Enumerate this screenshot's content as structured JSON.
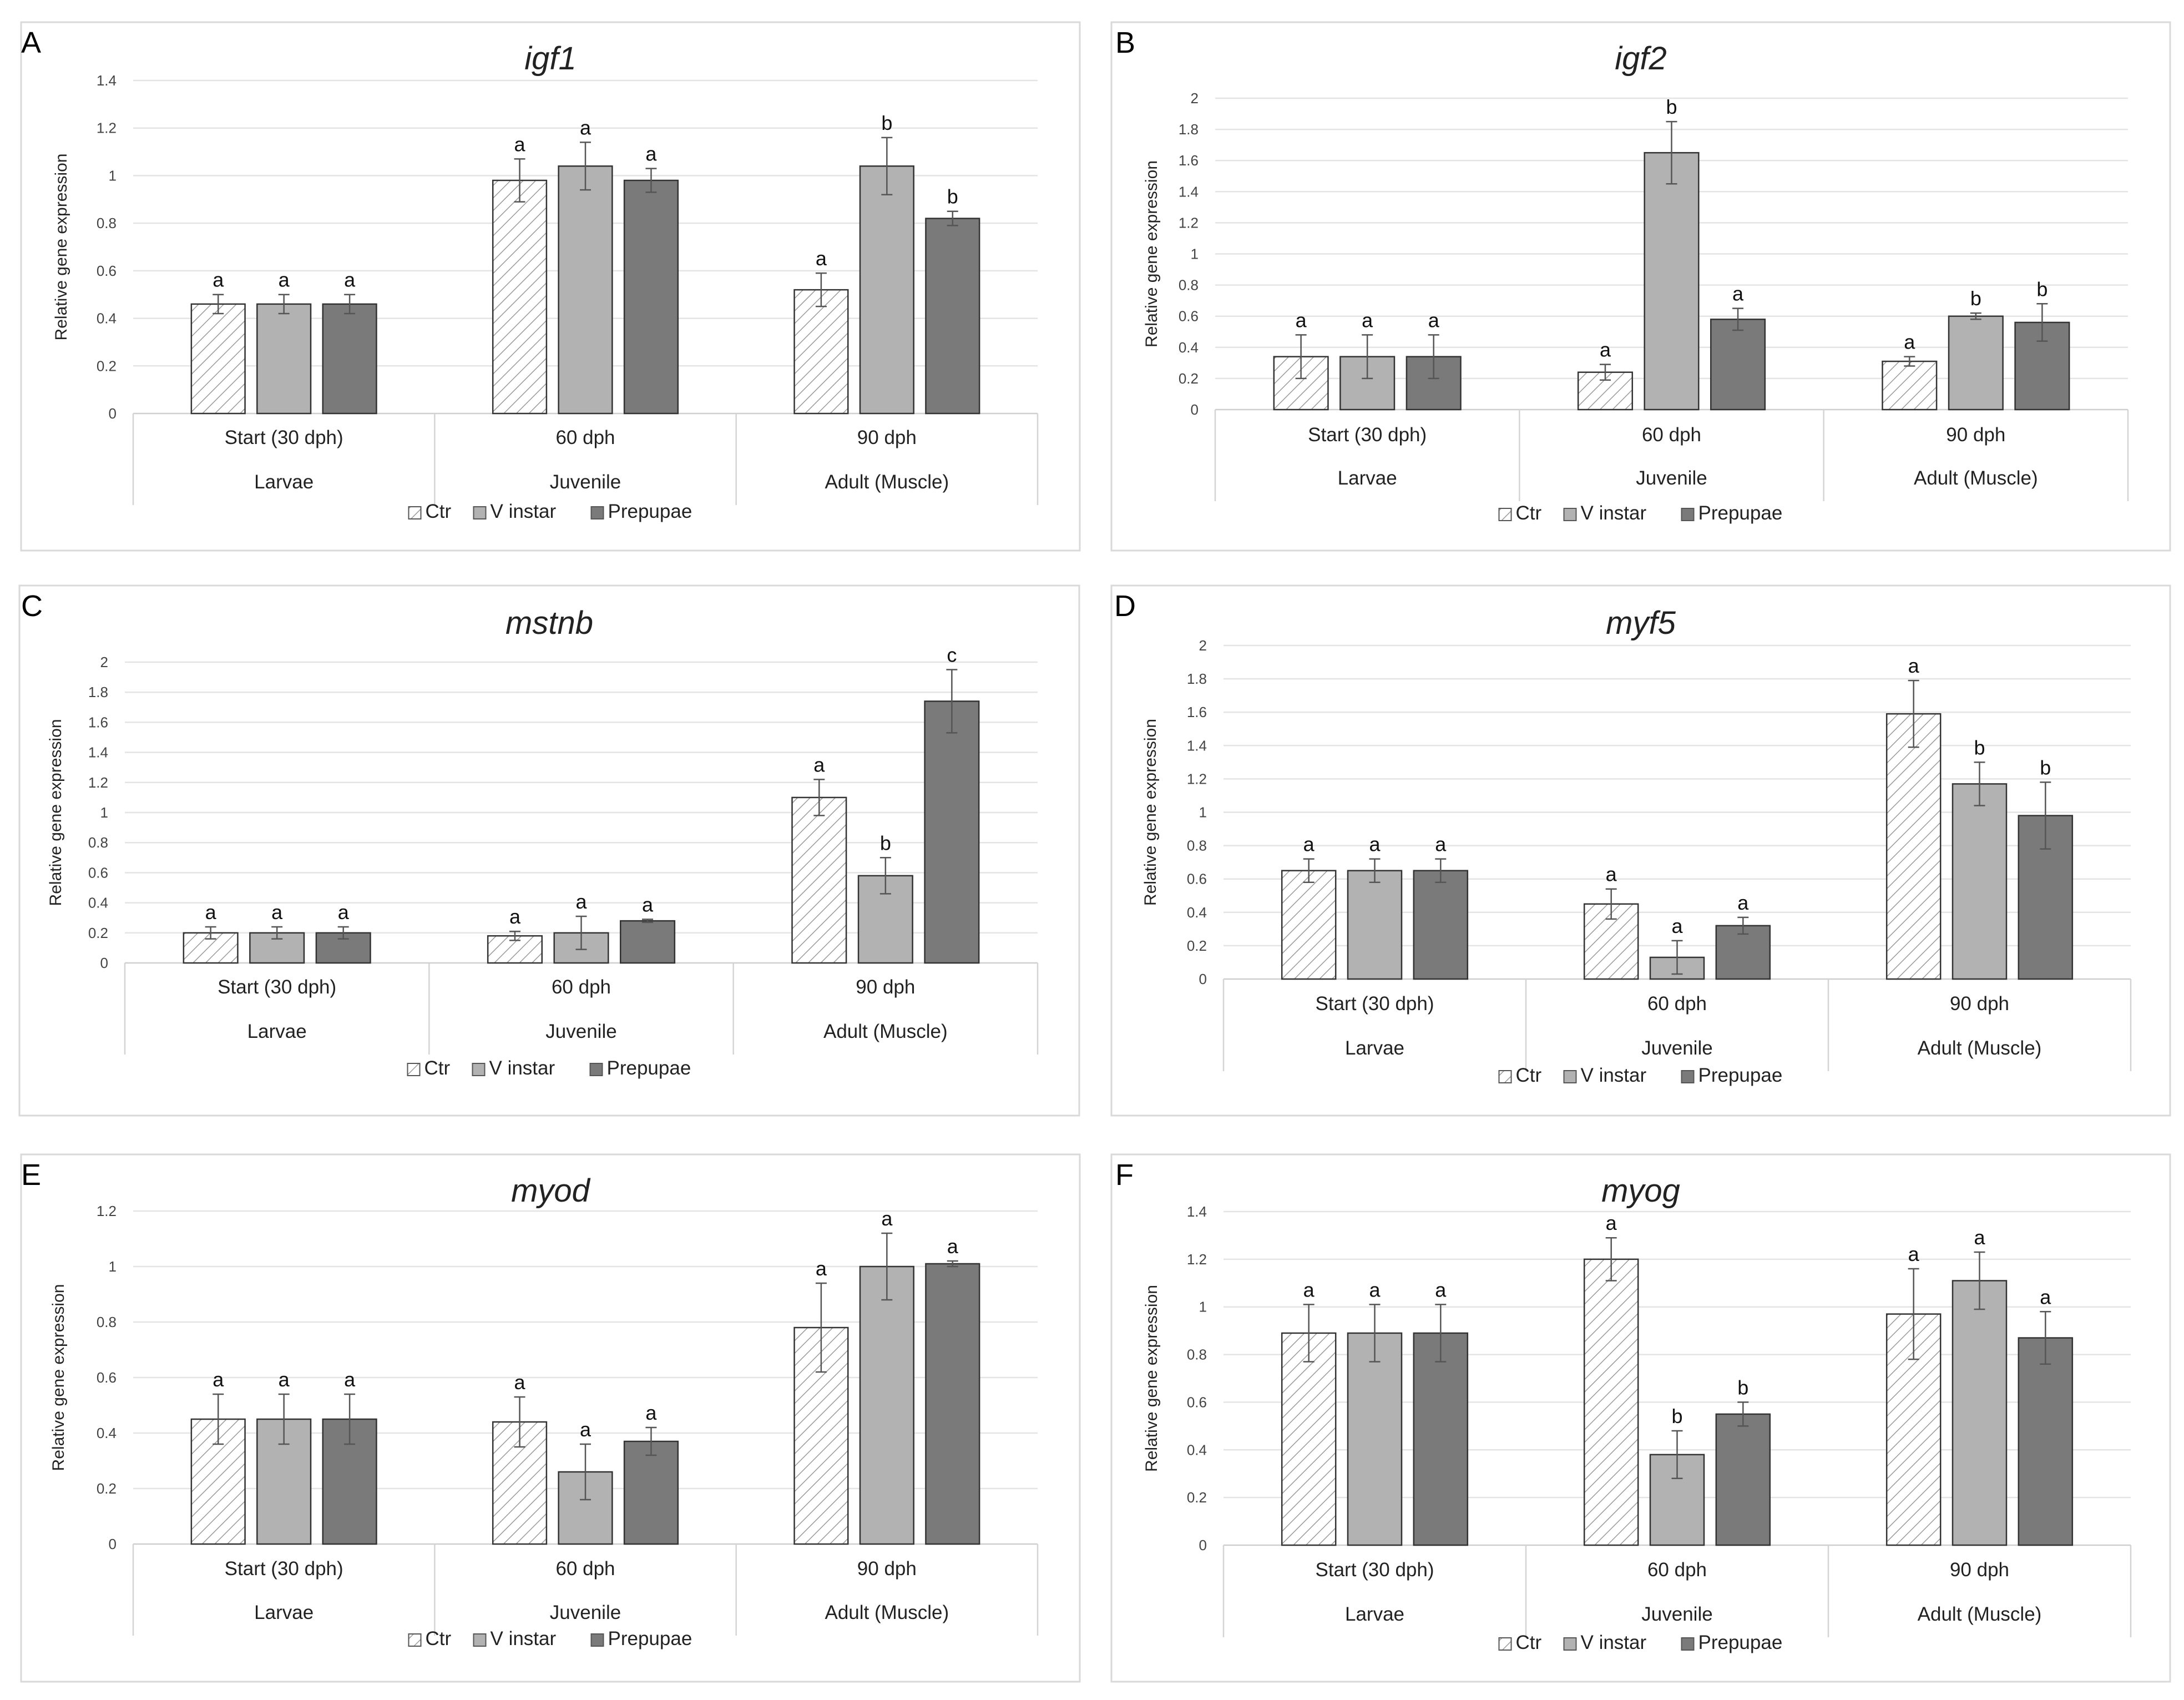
{
  "figure": {
    "legend": [
      "Ctr",
      "V instar",
      "Prepupae"
    ],
    "colors": {
      "ctr_hatch": "#9a9a9a",
      "ctr_fill": "#ffffff",
      "v_instar": "#b2b2b2",
      "prepupae": "#7a7a7a",
      "border": "#d9d9d9",
      "grid": "#e4e4e4"
    }
  },
  "chart_data": [
    {
      "panel": "A",
      "type": "bar",
      "title": "igf1",
      "ylabel": "Relative gene expression",
      "ylim": [
        0,
        1.4
      ],
      "yticks": [
        "0",
        "0.2",
        "0.4",
        "0.6",
        "0.8",
        "1",
        "1.2",
        "1.4"
      ],
      "categories": [
        "Start (30 dph)",
        "60 dph",
        "90 dph"
      ],
      "groups": [
        "Larvae",
        "Juvenile",
        "Adult (Muscle)"
      ],
      "series": [
        {
          "name": "Ctr",
          "values": [
            0.46,
            0.98,
            0.52
          ],
          "errors": [
            0.04,
            0.09,
            0.07
          ],
          "labels": [
            "a",
            "a",
            "a"
          ]
        },
        {
          "name": "V instar",
          "values": [
            0.46,
            1.04,
            1.04
          ],
          "errors": [
            0.04,
            0.1,
            0.12
          ],
          "labels": [
            "a",
            "a",
            "b"
          ]
        },
        {
          "name": "Prepupae",
          "values": [
            0.46,
            0.98,
            0.82
          ],
          "errors": [
            0.04,
            0.05,
            0.03
          ],
          "labels": [
            "a",
            "a",
            "b"
          ]
        }
      ]
    },
    {
      "panel": "B",
      "type": "bar",
      "title": "igf2",
      "ylabel": "Relative gene expression",
      "ylim": [
        0,
        2
      ],
      "yticks": [
        "0",
        "0.2",
        "0.4",
        "0.6",
        "0.8",
        "1",
        "1.2",
        "1.4",
        "1.6",
        "1.8",
        "2"
      ],
      "categories": [
        "Start (30 dph)",
        "60 dph",
        "90 dph"
      ],
      "groups": [
        "Larvae",
        "Juvenile",
        "Adult (Muscle)"
      ],
      "series": [
        {
          "name": "Ctr",
          "values": [
            0.34,
            0.24,
            0.31
          ],
          "errors": [
            0.14,
            0.05,
            0.03
          ],
          "labels": [
            "a",
            "a",
            "a"
          ]
        },
        {
          "name": "V instar",
          "values": [
            0.34,
            1.65,
            0.6
          ],
          "errors": [
            0.14,
            0.2,
            0.02
          ],
          "labels": [
            "a",
            "b",
            "b"
          ]
        },
        {
          "name": "Prepupae",
          "values": [
            0.34,
            0.58,
            0.56
          ],
          "errors": [
            0.14,
            0.07,
            0.12
          ],
          "labels": [
            "a",
            "a",
            "b"
          ]
        }
      ]
    },
    {
      "panel": "C",
      "type": "bar",
      "title": "mstnb",
      "ylabel": "Relative gene expression",
      "ylim": [
        0,
        2
      ],
      "yticks": [
        "0",
        "0.2",
        "0.4",
        "0.6",
        "0.8",
        "1",
        "1.2",
        "1.4",
        "1.6",
        "1.8",
        "2"
      ],
      "categories": [
        "Start (30 dph)",
        "60 dph",
        "90 dph"
      ],
      "groups": [
        "Larvae",
        "Juvenile",
        "Adult (Muscle)"
      ],
      "series": [
        {
          "name": "Ctr",
          "values": [
            0.2,
            0.18,
            1.1
          ],
          "errors": [
            0.04,
            0.03,
            0.12
          ],
          "labels": [
            "a",
            "a",
            "a"
          ]
        },
        {
          "name": "V instar",
          "values": [
            0.2,
            0.2,
            0.58
          ],
          "errors": [
            0.04,
            0.11,
            0.12
          ],
          "labels": [
            "a",
            "a",
            "b"
          ]
        },
        {
          "name": "Prepupae",
          "values": [
            0.2,
            0.28,
            1.74
          ],
          "errors": [
            0.04,
            0.01,
            0.21
          ],
          "labels": [
            "a",
            "a",
            "c"
          ]
        }
      ]
    },
    {
      "panel": "D",
      "type": "bar",
      "title": "myf5",
      "ylabel": "Relative gene expression",
      "ylim": [
        0,
        2
      ],
      "yticks": [
        "0",
        "0.2",
        "0.4",
        "0.6",
        "0.8",
        "1",
        "1.2",
        "1.4",
        "1.6",
        "1.8",
        "2"
      ],
      "categories": [
        "Start (30 dph)",
        "60 dph",
        "90 dph"
      ],
      "groups": [
        "Larvae",
        "Juvenile",
        "Adult (Muscle)"
      ],
      "series": [
        {
          "name": "Ctr",
          "values": [
            0.65,
            0.45,
            1.59
          ],
          "errors": [
            0.07,
            0.09,
            0.2
          ],
          "labels": [
            "a",
            "a",
            "a"
          ]
        },
        {
          "name": "V instar",
          "values": [
            0.65,
            0.13,
            1.17
          ],
          "errors": [
            0.07,
            0.1,
            0.13
          ],
          "labels": [
            "a",
            "a",
            "b"
          ]
        },
        {
          "name": "Prepupae",
          "values": [
            0.65,
            0.32,
            0.98
          ],
          "errors": [
            0.07,
            0.05,
            0.2
          ],
          "labels": [
            "a",
            "a",
            "b"
          ]
        }
      ]
    },
    {
      "panel": "E",
      "type": "bar",
      "title": "myod",
      "ylabel": "Relative gene expression",
      "ylim": [
        0,
        1.2
      ],
      "yticks": [
        "0",
        "0.2",
        "0.4",
        "0.6",
        "0.8",
        "1",
        "1.2"
      ],
      "categories": [
        "Start (30 dph)",
        "60 dph",
        "90 dph"
      ],
      "groups": [
        "Larvae",
        "Juvenile",
        "Adult (Muscle)"
      ],
      "series": [
        {
          "name": "Ctr",
          "values": [
            0.45,
            0.44,
            0.78
          ],
          "errors": [
            0.09,
            0.09,
            0.16
          ],
          "labels": [
            "a",
            "a",
            "a"
          ]
        },
        {
          "name": "V instar",
          "values": [
            0.45,
            0.26,
            1.0
          ],
          "errors": [
            0.09,
            0.1,
            0.12
          ],
          "labels": [
            "a",
            "a",
            "a"
          ]
        },
        {
          "name": "Prepupae",
          "values": [
            0.45,
            0.37,
            1.01
          ],
          "errors": [
            0.09,
            0.05,
            0.01
          ],
          "labels": [
            "a",
            "a",
            "a"
          ]
        }
      ]
    },
    {
      "panel": "F",
      "type": "bar",
      "title": "myog",
      "ylabel": "Relative gene expression",
      "ylim": [
        0,
        1.4
      ],
      "yticks": [
        "0",
        "0.2",
        "0.4",
        "0.6",
        "0.8",
        "1",
        "1.2",
        "1.4"
      ],
      "categories": [
        "Start (30 dph)",
        "60 dph",
        "90 dph"
      ],
      "groups": [
        "Larvae",
        "Juvenile",
        "Adult (Muscle)"
      ],
      "series": [
        {
          "name": "Ctr",
          "values": [
            0.89,
            1.2,
            0.97
          ],
          "errors": [
            0.12,
            0.09,
            0.19
          ],
          "labels": [
            "a",
            "a",
            "a"
          ]
        },
        {
          "name": "V instar",
          "values": [
            0.89,
            0.38,
            1.11
          ],
          "errors": [
            0.12,
            0.1,
            0.12
          ],
          "labels": [
            "a",
            "b",
            "a"
          ]
        },
        {
          "name": "Prepupae",
          "values": [
            0.89,
            0.55,
            0.87
          ],
          "errors": [
            0.12,
            0.05,
            0.11
          ],
          "labels": [
            "a",
            "b",
            "a"
          ]
        }
      ]
    }
  ]
}
